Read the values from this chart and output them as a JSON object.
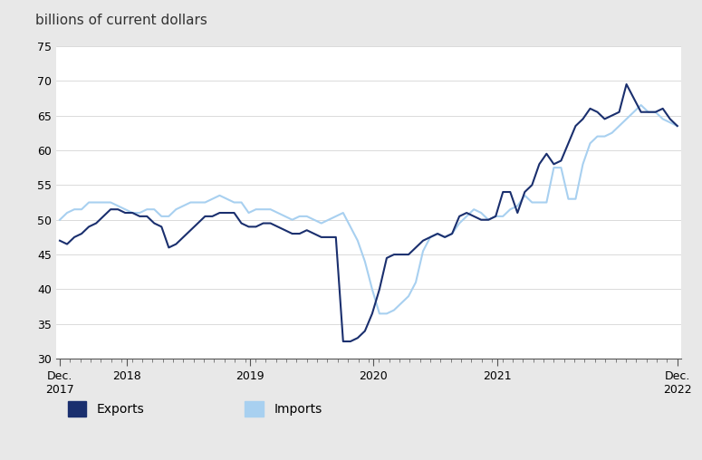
{
  "title": "billions of current dollars",
  "background_color": "#e8e8e8",
  "plot_background_color": "#ffffff",
  "exports_color": "#1a2f6e",
  "imports_color": "#a8d0f0",
  "ylim": [
    30,
    75
  ],
  "yticks": [
    30,
    35,
    40,
    45,
    50,
    55,
    60,
    65,
    70,
    75
  ],
  "legend_labels": [
    "Exports",
    "Imports"
  ],
  "x_tick_labels": [
    "Dec.\n2017",
    "2018",
    "2019",
    "2020",
    "2021",
    "Dec.\n2022"
  ],
  "exports": [
    47.0,
    46.5,
    47.5,
    48.0,
    49.0,
    49.5,
    50.5,
    51.5,
    51.5,
    51.0,
    51.0,
    50.5,
    50.5,
    49.5,
    49.0,
    46.0,
    46.5,
    47.5,
    48.5,
    49.5,
    50.5,
    50.5,
    51.0,
    51.0,
    51.0,
    49.5,
    49.0,
    49.0,
    49.5,
    49.5,
    49.0,
    48.5,
    48.0,
    48.0,
    48.5,
    48.0,
    47.5,
    47.5,
    47.5,
    32.5,
    32.5,
    33.0,
    34.0,
    36.5,
    40.0,
    44.5,
    45.0,
    45.0,
    45.0,
    46.0,
    47.0,
    47.5,
    48.0,
    47.5,
    48.0,
    50.5,
    51.0,
    50.5,
    50.0,
    50.0,
    50.5,
    54.0,
    54.0,
    51.0,
    54.0,
    55.0,
    58.0,
    59.5,
    58.0,
    58.5,
    61.0,
    63.5,
    64.5,
    66.0,
    65.5,
    64.5,
    65.0,
    65.5,
    69.5,
    67.5,
    65.5,
    65.5,
    65.5,
    66.0,
    64.5,
    63.5
  ],
  "imports": [
    50.0,
    51.0,
    51.5,
    51.5,
    52.5,
    52.5,
    52.5,
    52.5,
    52.0,
    51.5,
    51.0,
    51.0,
    51.5,
    51.5,
    50.5,
    50.5,
    51.5,
    52.0,
    52.5,
    52.5,
    52.5,
    53.0,
    53.5,
    53.0,
    52.5,
    52.5,
    51.0,
    51.5,
    51.5,
    51.5,
    51.0,
    50.5,
    50.0,
    50.5,
    50.5,
    50.0,
    49.5,
    50.0,
    50.5,
    51.0,
    49.0,
    47.0,
    44.0,
    40.0,
    36.5,
    36.5,
    37.0,
    38.0,
    39.0,
    41.0,
    45.5,
    47.5,
    48.0,
    47.5,
    48.0,
    49.5,
    50.5,
    51.5,
    51.0,
    50.0,
    50.5,
    50.5,
    51.5,
    52.0,
    53.5,
    52.5,
    52.5,
    52.5,
    57.5,
    57.5,
    53.0,
    53.0,
    58.0,
    61.0,
    62.0,
    62.0,
    62.5,
    63.5,
    64.5,
    65.5,
    66.5,
    65.5,
    65.5,
    64.5,
    64.0,
    63.5
  ]
}
